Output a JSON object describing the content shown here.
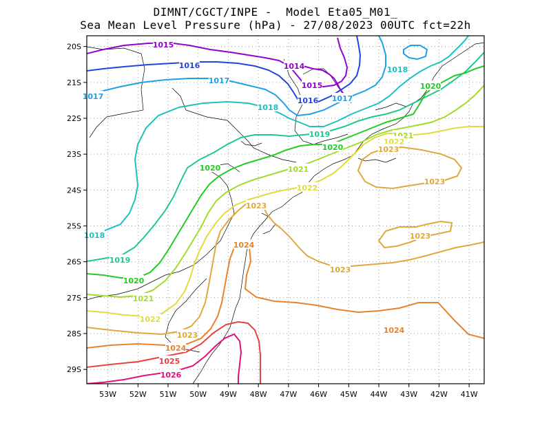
{
  "title": {
    "line1": "DIMNT/CGCT/INPE -  Model Eta05_M01_",
    "line2": "Sea Mean Level Pressure (hPa) - 27/08/2023 00UTC fct=22h"
  },
  "axes": {
    "lon_ticks": [
      "53W",
      "52W",
      "51W",
      "50W",
      "49W",
      "48W",
      "47W",
      "46W",
      "45W",
      "44W",
      "43W",
      "42W",
      "41W"
    ],
    "lat_ticks": [
      "20S",
      "21S",
      "22S",
      "23S",
      "24S",
      "25S",
      "26S",
      "27S",
      "28S",
      "29S"
    ],
    "lon_range": [
      -53.7,
      -40.5
    ],
    "lat_range": [
      -29.4,
      -19.7
    ],
    "grid": true
  },
  "isobars": [
    {
      "value": "1014",
      "color": "#9400d3"
    },
    {
      "value": "1015",
      "color": "#9400d3"
    },
    {
      "value": "1016",
      "color": "#2244dd"
    },
    {
      "value": "1017",
      "color": "#1e9fea"
    },
    {
      "value": "1018",
      "color": "#1fc0c0"
    },
    {
      "value": "1019",
      "color": "#1fc98a"
    },
    {
      "value": "1020",
      "color": "#22cc22"
    },
    {
      "value": "1021",
      "color": "#a0dc2a"
    },
    {
      "value": "1022",
      "color": "#e0dc3c"
    },
    {
      "value": "1023",
      "color": "#e0a83c"
    },
    {
      "value": "1024",
      "color": "#e8822a"
    },
    {
      "value": "1025",
      "color": "#e84040"
    },
    {
      "value": "1026",
      "color": "#e0107a"
    }
  ]
}
